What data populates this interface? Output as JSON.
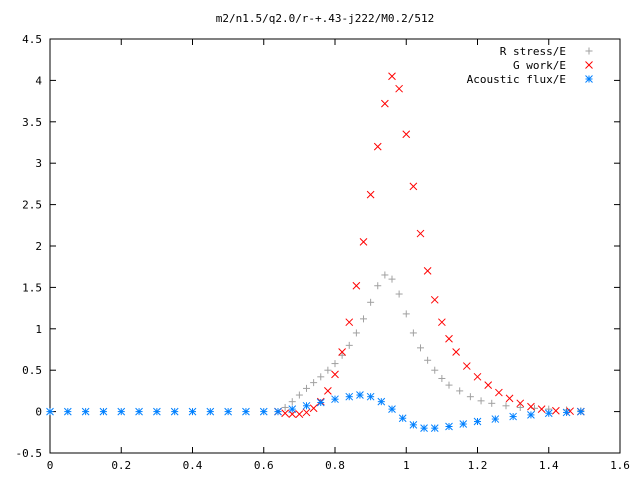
{
  "chart_data": {
    "type": "scatter",
    "title": "m2/n1.5/q2.0/r-+.43-j222/M0.2/512",
    "xlabel": "",
    "ylabel": "",
    "xlim": [
      0,
      1.6
    ],
    "ylim": [
      -0.5,
      4.5
    ],
    "x_ticks": [
      "0",
      "0.2",
      "0.4",
      "0.6",
      "0.8",
      "1",
      "1.2",
      "1.4",
      "1.6"
    ],
    "y_ticks": [
      "-0.5",
      "0",
      "0.5",
      "1",
      "1.5",
      "2",
      "2.5",
      "3",
      "3.5",
      "4",
      "4.5"
    ],
    "x_tick_values": [
      0,
      0.2,
      0.4,
      0.6,
      0.8,
      1.0,
      1.2,
      1.4,
      1.6
    ],
    "y_tick_values": [
      -0.5,
      0,
      0.5,
      1,
      1.5,
      2,
      2.5,
      3,
      3.5,
      4,
      4.5
    ],
    "grid": false,
    "legend_position": "top-right",
    "series": [
      {
        "name": "R stress/E",
        "marker": "plus",
        "color": "#a0a0a0",
        "points": [
          [
            0.64,
            0.0
          ],
          [
            0.66,
            0.05
          ],
          [
            0.68,
            0.12
          ],
          [
            0.7,
            0.2
          ],
          [
            0.72,
            0.28
          ],
          [
            0.74,
            0.35
          ],
          [
            0.76,
            0.42
          ],
          [
            0.78,
            0.5
          ],
          [
            0.8,
            0.58
          ],
          [
            0.82,
            0.68
          ],
          [
            0.84,
            0.8
          ],
          [
            0.86,
            0.95
          ],
          [
            0.88,
            1.12
          ],
          [
            0.9,
            1.32
          ],
          [
            0.92,
            1.52
          ],
          [
            0.94,
            1.65
          ],
          [
            0.96,
            1.6
          ],
          [
            0.98,
            1.42
          ],
          [
            1.0,
            1.18
          ],
          [
            1.02,
            0.95
          ],
          [
            1.04,
            0.77
          ],
          [
            1.06,
            0.62
          ],
          [
            1.08,
            0.5
          ],
          [
            1.1,
            0.4
          ],
          [
            1.12,
            0.32
          ],
          [
            1.15,
            0.25
          ],
          [
            1.18,
            0.18
          ],
          [
            1.21,
            0.13
          ],
          [
            1.24,
            0.1
          ],
          [
            1.28,
            0.07
          ],
          [
            1.32,
            0.05
          ],
          [
            1.36,
            0.04
          ],
          [
            1.4,
            0.03
          ],
          [
            1.45,
            0.02
          ],
          [
            1.49,
            0.01
          ]
        ]
      },
      {
        "name": "G work/E",
        "marker": "cross",
        "color": "#ff0000",
        "points": [
          [
            0.64,
            0.0
          ],
          [
            0.66,
            -0.02
          ],
          [
            0.68,
            -0.03
          ],
          [
            0.7,
            -0.03
          ],
          [
            0.72,
            -0.01
          ],
          [
            0.74,
            0.04
          ],
          [
            0.76,
            0.12
          ],
          [
            0.78,
            0.25
          ],
          [
            0.8,
            0.45
          ],
          [
            0.82,
            0.72
          ],
          [
            0.84,
            1.08
          ],
          [
            0.86,
            1.52
          ],
          [
            0.88,
            2.05
          ],
          [
            0.9,
            2.62
          ],
          [
            0.92,
            3.2
          ],
          [
            0.94,
            3.72
          ],
          [
            0.96,
            4.05
          ],
          [
            0.98,
            3.9
          ],
          [
            1.0,
            3.35
          ],
          [
            1.02,
            2.72
          ],
          [
            1.04,
            2.15
          ],
          [
            1.06,
            1.7
          ],
          [
            1.08,
            1.35
          ],
          [
            1.1,
            1.08
          ],
          [
            1.12,
            0.88
          ],
          [
            1.14,
            0.72
          ],
          [
            1.17,
            0.55
          ],
          [
            1.2,
            0.42
          ],
          [
            1.23,
            0.32
          ],
          [
            1.26,
            0.23
          ],
          [
            1.29,
            0.16
          ],
          [
            1.32,
            0.1
          ],
          [
            1.35,
            0.06
          ],
          [
            1.38,
            0.03
          ],
          [
            1.42,
            0.01
          ],
          [
            1.46,
            0.005
          ],
          [
            1.49,
            0.0
          ]
        ]
      },
      {
        "name": "Acoustic flux/E",
        "marker": "star",
        "color": "#0080ff",
        "points": [
          [
            0.0,
            0.0
          ],
          [
            0.05,
            0.0
          ],
          [
            0.1,
            0.0
          ],
          [
            0.15,
            0.0
          ],
          [
            0.2,
            0.0
          ],
          [
            0.25,
            0.0
          ],
          [
            0.3,
            0.0
          ],
          [
            0.35,
            0.0
          ],
          [
            0.4,
            0.0
          ],
          [
            0.45,
            0.0
          ],
          [
            0.5,
            0.0
          ],
          [
            0.55,
            0.0
          ],
          [
            0.6,
            0.0
          ],
          [
            0.64,
            0.0
          ],
          [
            0.68,
            0.03
          ],
          [
            0.72,
            0.07
          ],
          [
            0.76,
            0.11
          ],
          [
            0.8,
            0.15
          ],
          [
            0.84,
            0.18
          ],
          [
            0.87,
            0.2
          ],
          [
            0.9,
            0.18
          ],
          [
            0.93,
            0.12
          ],
          [
            0.96,
            0.03
          ],
          [
            0.99,
            -0.08
          ],
          [
            1.02,
            -0.16
          ],
          [
            1.05,
            -0.2
          ],
          [
            1.08,
            -0.2
          ],
          [
            1.12,
            -0.18
          ],
          [
            1.16,
            -0.15
          ],
          [
            1.2,
            -0.12
          ],
          [
            1.25,
            -0.09
          ],
          [
            1.3,
            -0.06
          ],
          [
            1.35,
            -0.04
          ],
          [
            1.4,
            -0.02
          ],
          [
            1.45,
            -0.01
          ],
          [
            1.49,
            0.0
          ]
        ]
      }
    ]
  },
  "legend": {
    "items": [
      {
        "label": "R stress/E",
        "marker": "plus",
        "color": "#a0a0a0"
      },
      {
        "label": "G work/E",
        "marker": "cross",
        "color": "#ff0000"
      },
      {
        "label": "Acoustic flux/E",
        "marker": "star",
        "color": "#0080ff"
      }
    ]
  }
}
